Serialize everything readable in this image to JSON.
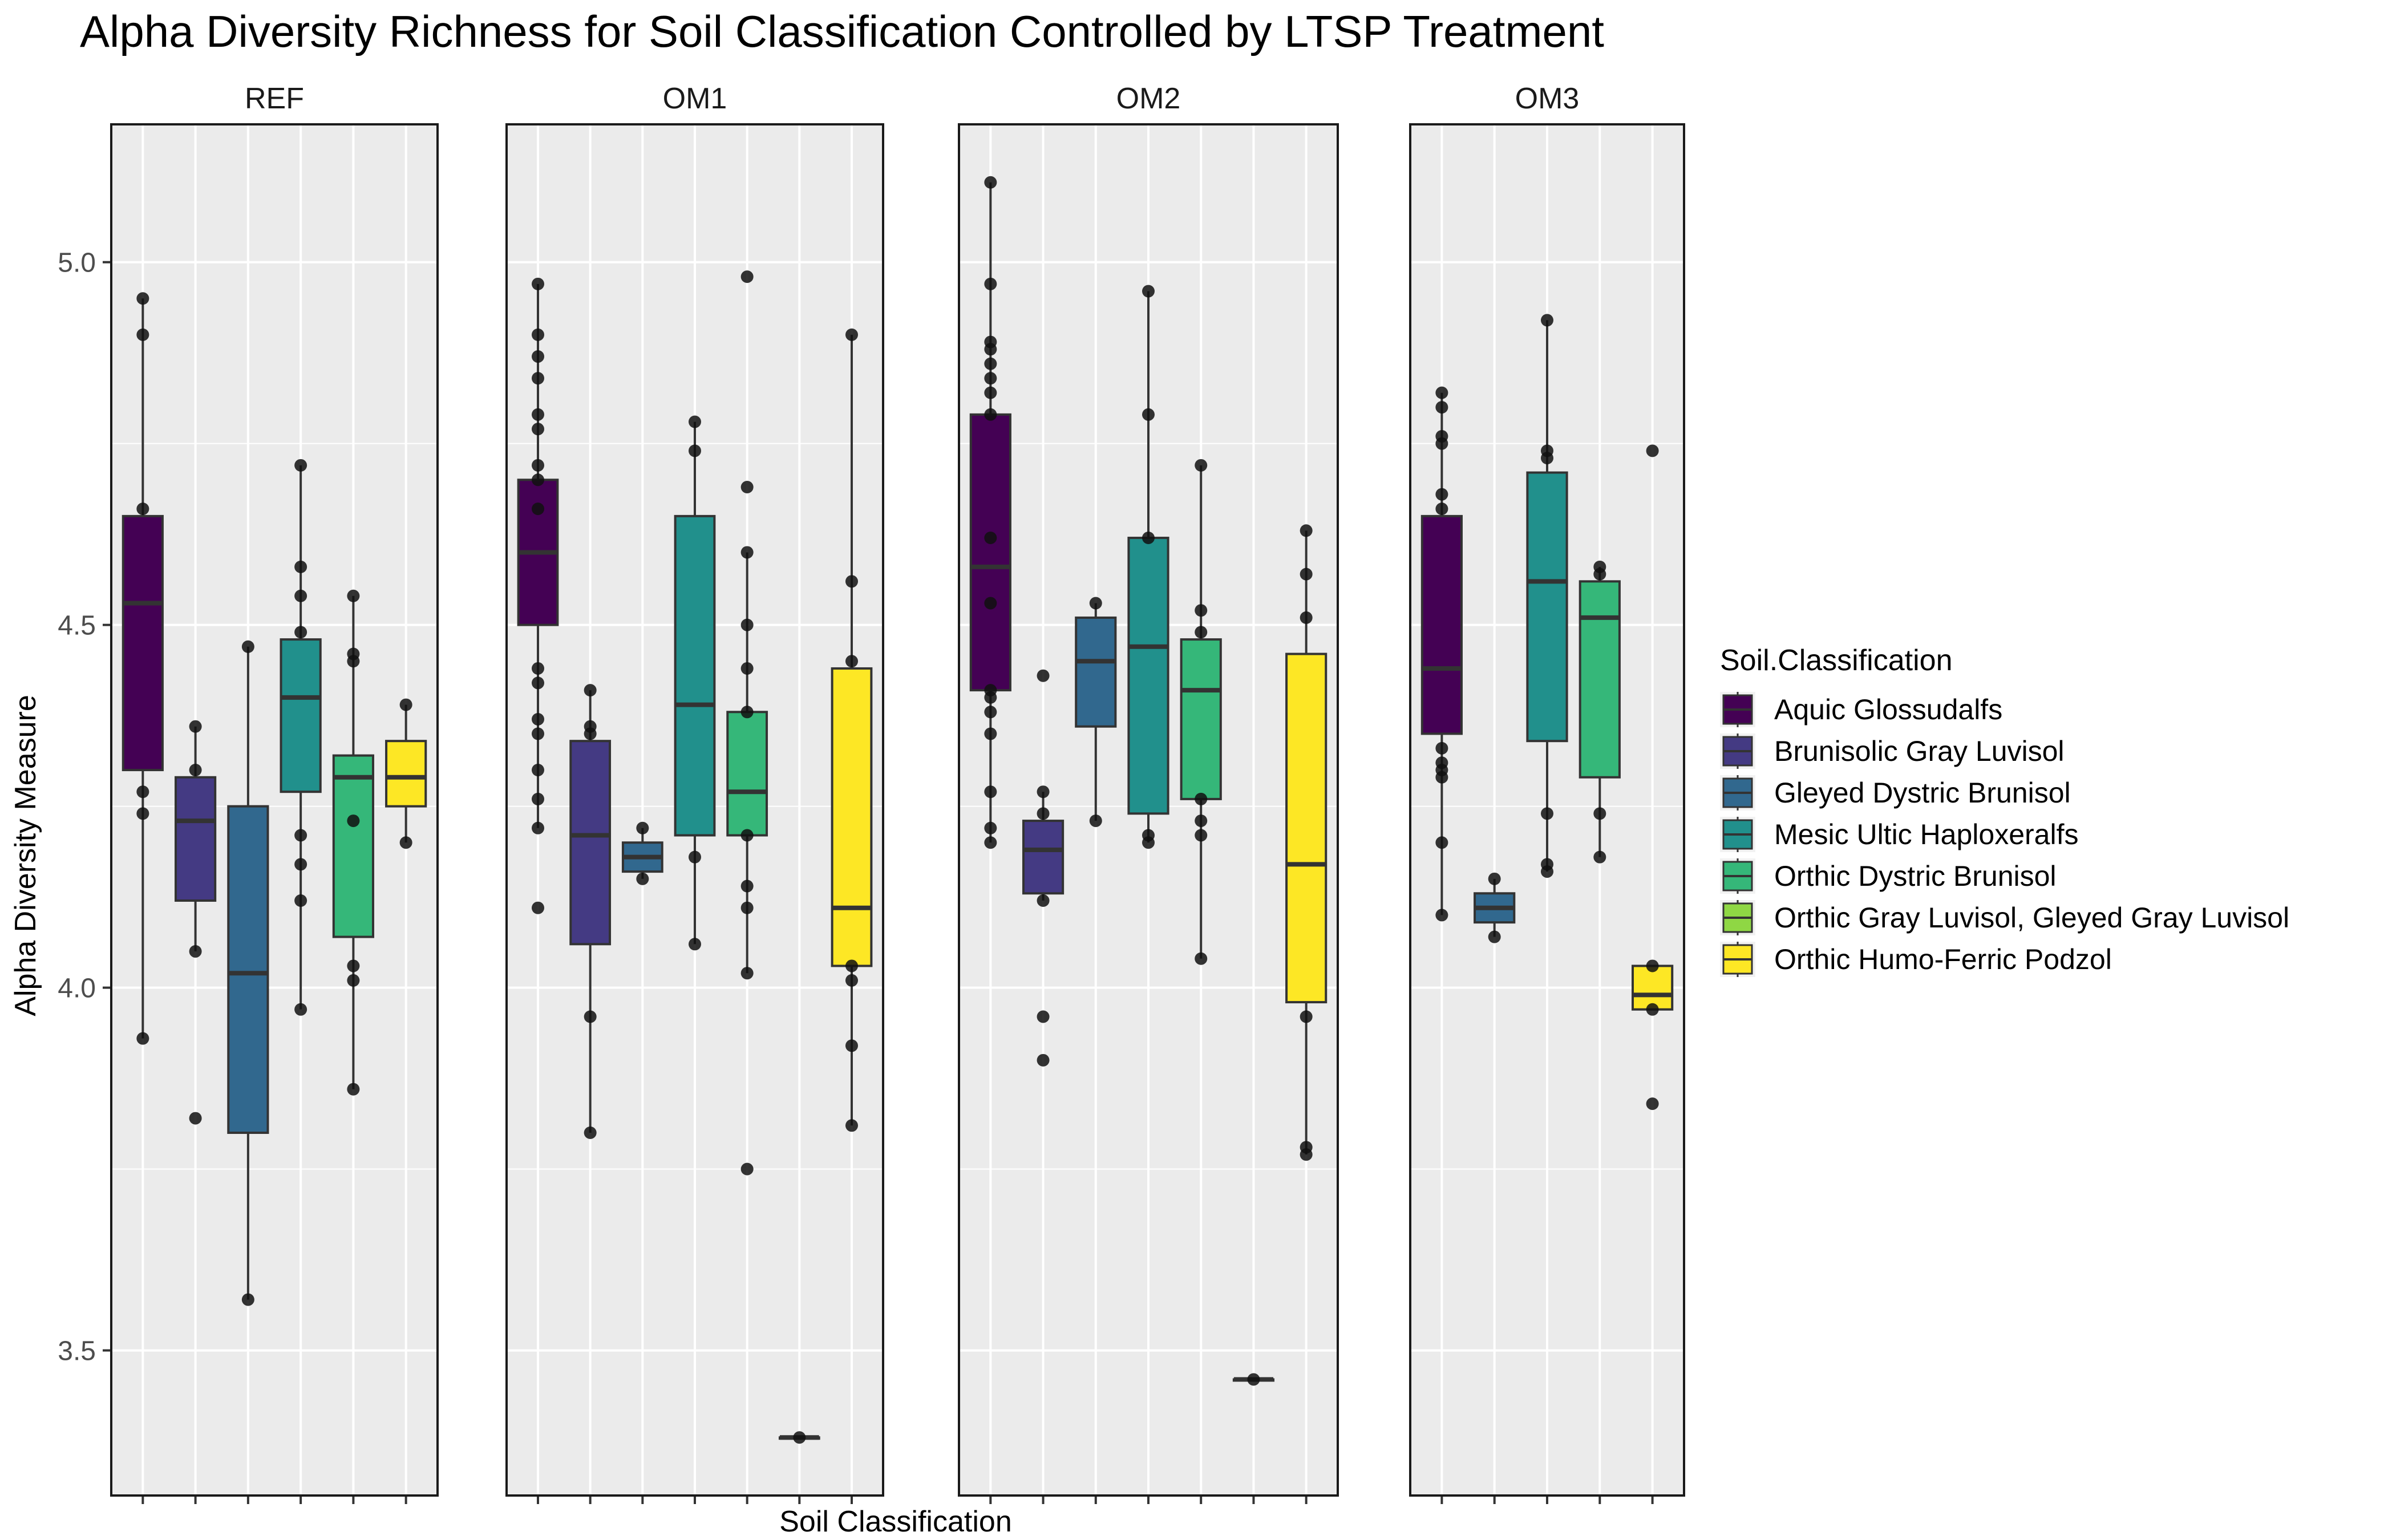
{
  "chart_data": {
    "type": "boxplot",
    "title": "Alpha Diversity Richness for Soil Classification Controlled by LTSP Treatment",
    "xlabel": "Soil Classification",
    "ylabel": "Alpha Diversity Measure",
    "ylim": [
      3.3,
      5.19
    ],
    "yticks": [
      3.5,
      4.0,
      4.5,
      5.0
    ],
    "ytick_labels": [
      "3.5",
      "4.0",
      "4.5",
      "5.0"
    ],
    "grid": true,
    "legend": {
      "title": "Soil.Classification",
      "position": "right",
      "entries": [
        {
          "label": "Aquic Glossudalfs",
          "color": "#440154"
        },
        {
          "label": "Brunisolic Gray Luvisol",
          "color": "#443A83"
        },
        {
          "label": "Gleyed Dystric Brunisol",
          "color": "#31688E"
        },
        {
          "label": "Mesic Ultic Haploxeralfs",
          "color": "#21908C"
        },
        {
          "label": "Orthic Dystric Brunisol",
          "color": "#35B779"
        },
        {
          "label": "Orthic Gray Luvisol, Gleyed Gray Luvisol",
          "color": "#8FD744"
        },
        {
          "label": "Orthic Humo-Ferric Podzol",
          "color": "#FDE725"
        }
      ]
    },
    "facets": [
      {
        "name": "REF",
        "categories": 6,
        "boxes": [
          {
            "pos": 1,
            "class": 0,
            "q1": 4.3,
            "median": 4.53,
            "q3": 4.65,
            "whisker_low": 3.93,
            "whisker_high": 4.95,
            "points": [
              4.95,
              4.9,
              4.66,
              4.27,
              4.24,
              3.93
            ]
          },
          {
            "pos": 2,
            "class": 1,
            "q1": 4.12,
            "median": 4.23,
            "q3": 4.29,
            "whisker_low": 4.05,
            "whisker_high": 4.36,
            "points": [
              4.36,
              4.3,
              4.05,
              3.82
            ]
          },
          {
            "pos": 3,
            "class": 2,
            "q1": 3.8,
            "median": 4.02,
            "q3": 4.25,
            "whisker_low": 3.57,
            "whisker_high": 4.47,
            "points": [
              4.47,
              3.57
            ]
          },
          {
            "pos": 4,
            "class": 3,
            "q1": 4.27,
            "median": 4.4,
            "q3": 4.48,
            "whisker_low": 3.97,
            "whisker_high": 4.72,
            "points": [
              4.72,
              4.58,
              4.54,
              4.49,
              4.21,
              4.17,
              4.12,
              3.97
            ]
          },
          {
            "pos": 5,
            "class": 4,
            "q1": 4.07,
            "median": 4.29,
            "q3": 4.32,
            "whisker_low": 3.86,
            "whisker_high": 4.54,
            "points": [
              4.54,
              4.46,
              4.45,
              4.23,
              4.03,
              4.01,
              3.86
            ]
          },
          {
            "pos": 6,
            "class": 6,
            "q1": 4.25,
            "median": 4.29,
            "q3": 4.34,
            "whisker_low": 4.2,
            "whisker_high": 4.39,
            "points": [
              4.39,
              4.2
            ]
          }
        ]
      },
      {
        "name": "OM1",
        "categories": 7,
        "boxes": [
          {
            "pos": 1,
            "class": 0,
            "q1": 4.5,
            "median": 4.6,
            "q3": 4.7,
            "whisker_low": 4.22,
            "whisker_high": 4.97,
            "points": [
              4.97,
              4.9,
              4.87,
              4.84,
              4.79,
              4.77,
              4.72,
              4.7,
              4.66,
              4.44,
              4.42,
              4.37,
              4.35,
              4.3,
              4.26,
              4.22,
              4.11
            ]
          },
          {
            "pos": 2,
            "class": 1,
            "q1": 4.06,
            "median": 4.21,
            "q3": 4.34,
            "whisker_low": 3.8,
            "whisker_high": 4.41,
            "points": [
              4.41,
              4.36,
              4.35,
              3.96,
              3.8
            ]
          },
          {
            "pos": 3,
            "class": 2,
            "q1": 4.16,
            "median": 4.18,
            "q3": 4.2,
            "whisker_low": 4.15,
            "whisker_high": 4.22,
            "points": [
              4.22,
              4.15
            ]
          },
          {
            "pos": 4,
            "class": 3,
            "q1": 4.21,
            "median": 4.39,
            "q3": 4.65,
            "whisker_low": 4.06,
            "whisker_high": 4.78,
            "points": [
              4.78,
              4.74,
              4.18,
              4.06
            ]
          },
          {
            "pos": 5,
            "class": 4,
            "q1": 4.21,
            "median": 4.27,
            "q3": 4.38,
            "whisker_low": 4.02,
            "whisker_high": 4.6,
            "points": [
              4.98,
              4.69,
              4.6,
              4.5,
              4.44,
              4.38,
              4.21,
              4.14,
              4.11,
              4.02,
              3.75
            ]
          },
          {
            "pos": 6,
            "class": 5,
            "q1": 3.38,
            "median": 3.38,
            "q3": 3.38,
            "whisker_low": 3.38,
            "whisker_high": 3.38,
            "points": [
              3.38
            ]
          },
          {
            "pos": 7,
            "class": 6,
            "q1": 4.03,
            "median": 4.11,
            "q3": 4.44,
            "whisker_low": 3.81,
            "whisker_high": 4.9,
            "points": [
              4.9,
              4.56,
              4.45,
              4.03,
              4.01,
              3.92,
              3.81
            ]
          }
        ]
      },
      {
        "name": "OM2",
        "categories": 7,
        "boxes": [
          {
            "pos": 1,
            "class": 0,
            "q1": 4.41,
            "median": 4.58,
            "q3": 4.79,
            "whisker_low": 4.2,
            "whisker_high": 5.11,
            "points": [
              5.11,
              4.97,
              4.89,
              4.88,
              4.86,
              4.84,
              4.82,
              4.79,
              4.62,
              4.53,
              4.41,
              4.4,
              4.38,
              4.35,
              4.27,
              4.22,
              4.2
            ]
          },
          {
            "pos": 2,
            "class": 1,
            "q1": 4.13,
            "median": 4.19,
            "q3": 4.23,
            "whisker_low": 4.12,
            "whisker_high": 4.27,
            "points": [
              4.43,
              4.27,
              4.24,
              4.12,
              3.96,
              3.9
            ]
          },
          {
            "pos": 3,
            "class": 2,
            "q1": 4.36,
            "median": 4.45,
            "q3": 4.51,
            "whisker_low": 4.23,
            "whisker_high": 4.53,
            "points": [
              4.53,
              4.23
            ]
          },
          {
            "pos": 4,
            "class": 3,
            "q1": 4.24,
            "median": 4.47,
            "q3": 4.62,
            "whisker_low": 4.2,
            "whisker_high": 4.96,
            "points": [
              4.96,
              4.79,
              4.62,
              4.21,
              4.2
            ]
          },
          {
            "pos": 5,
            "class": 4,
            "q1": 4.26,
            "median": 4.41,
            "q3": 4.48,
            "whisker_low": 4.04,
            "whisker_high": 4.72,
            "points": [
              4.72,
              4.52,
              4.49,
              4.26,
              4.23,
              4.21,
              4.04
            ]
          },
          {
            "pos": 6,
            "class": 5,
            "q1": 3.46,
            "median": 3.46,
            "q3": 3.46,
            "whisker_low": 3.46,
            "whisker_high": 3.46,
            "points": [
              3.46
            ]
          },
          {
            "pos": 7,
            "class": 6,
            "q1": 3.98,
            "median": 4.17,
            "q3": 4.46,
            "whisker_low": 3.77,
            "whisker_high": 4.63,
            "points": [
              4.63,
              4.57,
              4.51,
              3.96,
              3.78,
              3.77
            ]
          }
        ]
      },
      {
        "name": "OM3",
        "categories": 5,
        "boxes": [
          {
            "pos": 1,
            "class": 0,
            "q1": 4.35,
            "median": 4.44,
            "q3": 4.65,
            "whisker_low": 4.1,
            "whisker_high": 4.82,
            "points": [
              4.82,
              4.8,
              4.76,
              4.75,
              4.68,
              4.66,
              4.33,
              4.31,
              4.3,
              4.29,
              4.2,
              4.1
            ]
          },
          {
            "pos": 2,
            "class": 2,
            "q1": 4.09,
            "median": 4.11,
            "q3": 4.13,
            "whisker_low": 4.07,
            "whisker_high": 4.15,
            "points": [
              4.15,
              4.07
            ]
          },
          {
            "pos": 3,
            "class": 3,
            "q1": 4.34,
            "median": 4.56,
            "q3": 4.71,
            "whisker_low": 4.16,
            "whisker_high": 4.92,
            "points": [
              4.92,
              4.74,
              4.73,
              4.24,
              4.17,
              4.16
            ]
          },
          {
            "pos": 4,
            "class": 4,
            "q1": 4.29,
            "median": 4.51,
            "q3": 4.56,
            "whisker_low": 4.18,
            "whisker_high": 4.58,
            "points": [
              4.58,
              4.57,
              4.24,
              4.18
            ]
          },
          {
            "pos": 5,
            "class": 6,
            "q1": 3.97,
            "median": 3.99,
            "q3": 4.03,
            "whisker_low": 3.97,
            "whisker_high": 4.03,
            "points": [
              4.74,
              4.03,
              3.97,
              3.84
            ]
          }
        ]
      }
    ]
  }
}
